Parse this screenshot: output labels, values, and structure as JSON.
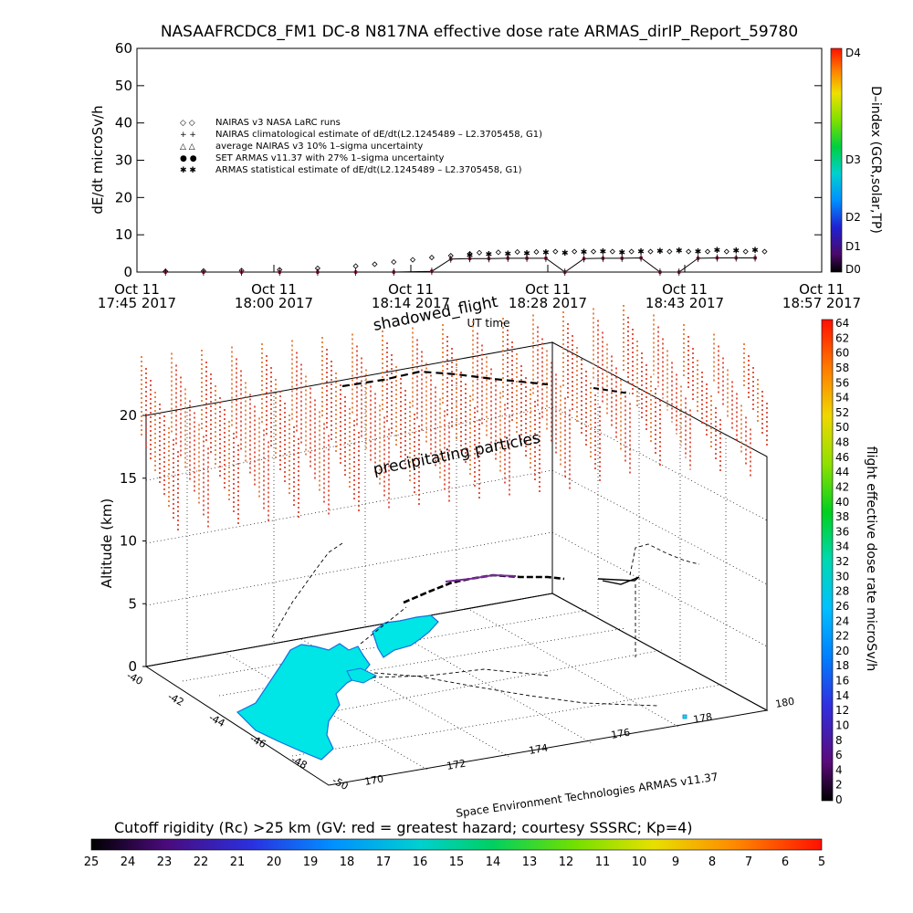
{
  "title": "NASAAFRCDC8_FM1 DC-8   N817NA effective dose rate ARMAS_dirIP_Report_59780",
  "chart_data": [
    {
      "type": "scatter",
      "ylabel": "dE/dt microSv/h",
      "xlabel": "UT time",
      "ylim": [
        0,
        60
      ],
      "yticks": [
        "0",
        "10",
        "20",
        "30",
        "40",
        "50",
        "60"
      ],
      "xticks": [
        {
          "date": "Oct 11",
          "time": "17:45 2017"
        },
        {
          "date": "Oct 11",
          "time": "18:00 2017"
        },
        {
          "date": "Oct 11",
          "time": "18:14 2017"
        },
        {
          "date": "Oct 11",
          "time": "18:28 2017"
        },
        {
          "date": "Oct 11",
          "time": "18:43 2017"
        },
        {
          "date": "Oct 11",
          "time": "18:57 2017"
        }
      ],
      "legend_position": "upper-left",
      "legend": [
        {
          "symbol": "◇ ◇",
          "label": "NAIRAS v3 NASA LaRC runs"
        },
        {
          "symbol": "+ +",
          "label": "NAIRAS climatological estimate of dE/dt(L2.1245489 – L2.3705458, G1)"
        },
        {
          "symbol": "△ △",
          "label": "average NAIRAS v3 10% 1–sigma uncertainty"
        },
        {
          "symbol": "● ●",
          "label": "SET ARMAS v11.37 with 27% 1–sigma uncertainty",
          "color": "#1f3fd8"
        },
        {
          "symbol": "✱ ✱",
          "label": "ARMAS statistical estimate of dE/dt(L2.1245489 – L2.3705458, G1)"
        }
      ],
      "series": [
        {
          "name": "NAIRAS v3 NASA LaRC runs",
          "x": [
            "17:48",
            "17:52",
            "17:56",
            "18:00",
            "18:04",
            "18:08",
            "18:10",
            "18:12",
            "18:14",
            "18:16",
            "18:18",
            "18:20",
            "18:21",
            "18:23",
            "18:25",
            "18:27",
            "18:29",
            "18:31",
            "18:33",
            "18:35",
            "18:37",
            "18:39",
            "18:41",
            "18:43",
            "18:45",
            "18:47",
            "18:49",
            "18:51"
          ],
          "y": [
            0.2,
            0.3,
            0.4,
            0.6,
            1.0,
            1.6,
            2.1,
            2.7,
            3.3,
            3.9,
            4.4,
            4.9,
            5.2,
            5.3,
            5.4,
            5.4,
            5.5,
            5.5,
            5.5,
            5.5,
            5.5,
            5.5,
            5.5,
            5.5,
            5.5,
            5.5,
            5.5,
            5.5
          ]
        },
        {
          "name": "SET ARMAS v11.37 with 27% 1–sigma uncertainty",
          "x": [
            "17:48",
            "17:52",
            "17:56",
            "18:00",
            "18:04",
            "18:08",
            "18:12",
            "18:16",
            "18:18",
            "18:20",
            "18:22",
            "18:24",
            "18:26",
            "18:28",
            "18:30",
            "18:32",
            "18:34",
            "18:36",
            "18:38",
            "18:40",
            "18:42",
            "18:44",
            "18:46",
            "18:48",
            "18:50"
          ],
          "y": [
            0,
            0,
            0,
            0,
            0,
            0,
            0,
            0.2,
            3.5,
            3.6,
            3.6,
            3.7,
            3.7,
            3.7,
            0,
            3.6,
            3.7,
            3.7,
            3.8,
            0,
            0,
            3.7,
            3.8,
            3.8,
            3.8
          ],
          "color": "#7a1a3a"
        },
        {
          "name": "ARMAS statistical estimate of dE/dt(L2.1245489 – L2.3705458, G1)",
          "x": [
            "18:20",
            "18:22",
            "18:24",
            "18:26",
            "18:28",
            "18:30",
            "18:32",
            "18:34",
            "18:36",
            "18:38",
            "18:40",
            "18:42",
            "18:44",
            "18:46",
            "18:48",
            "18:50"
          ],
          "y": [
            4.8,
            5.0,
            5.2,
            5.3,
            5.5,
            5.4,
            5.6,
            5.7,
            5.5,
            5.8,
            5.9,
            6.0,
            5.8,
            6.1,
            6.0,
            6.1
          ]
        }
      ],
      "colorbar": {
        "title": "D–index (GCR,solar,TP)",
        "labels": [
          "D4",
          "D3",
          "D2",
          "D1",
          "D0"
        ]
      }
    },
    {
      "type": "scatter",
      "ylabel": "Altitude (km)",
      "zticks": [
        "0",
        "5",
        "10",
        "15",
        "20"
      ],
      "lat_ticks": [
        "-40",
        "-42",
        "-44",
        "-46",
        "-48",
        "-50"
      ],
      "lon_ticks": [
        "170",
        "172",
        "174",
        "176",
        "178",
        "180"
      ],
      "annotations": [
        "shadowed_flight",
        "precipitating particles"
      ],
      "series": [
        {
          "name": "flight effective dose rate microSv/h",
          "note": "flight track at cruise altitude ~7 km"
        }
      ],
      "colorbar": {
        "title": "flight effective dose rate microSv/h",
        "labels": [
          "64",
          "62",
          "60",
          "58",
          "56",
          "54",
          "52",
          "50",
          "48",
          "46",
          "44",
          "42",
          "40",
          "38",
          "36",
          "34",
          "32",
          "30",
          "28",
          "26",
          "24",
          "22",
          "20",
          "18",
          "16",
          "14",
          "12",
          "10",
          "8",
          "6",
          "4",
          "2",
          "0"
        ]
      },
      "cutoff_colorbar": {
        "title": "Cutoff rigidity (Rc) >25 km (GV: red = greatest hazard; courtesy SSSRC; Kp=4)",
        "labels": [
          "25",
          "24",
          "23",
          "22",
          "21",
          "20",
          "19",
          "18",
          "17",
          "16",
          "15",
          "14",
          "13",
          "12",
          "11",
          "10",
          "9",
          "8",
          "7",
          "6",
          "5"
        ]
      }
    }
  ],
  "credit": "Space Environment Technologies ARMAS v11.37",
  "colors": {
    "land": "#00e5e5",
    "land_edge": "#1570e0",
    "pillars": "#e04818",
    "track": "#000000"
  }
}
